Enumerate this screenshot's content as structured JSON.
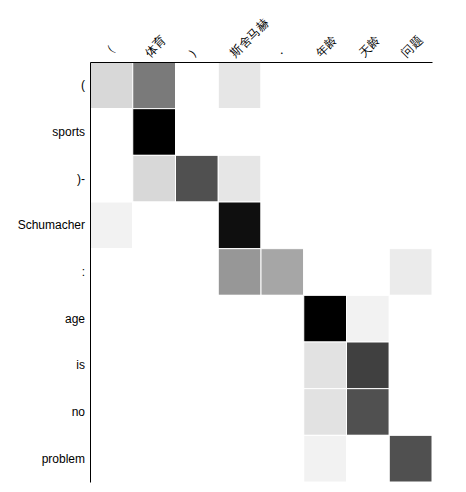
{
  "chart_data": {
    "type": "heatmap",
    "x": [
      "（",
      "体育",
      "）",
      "斯舍马赫",
      "．",
      "年龄",
      "天龄",
      "问题"
    ],
    "y": [
      "(",
      "sports",
      ")-",
      "Schumacher",
      ":",
      "age",
      "is",
      "no",
      "problem"
    ],
    "values": [
      [
        0.25,
        0.6,
        0.0,
        0.18,
        0.0,
        0.0,
        0.0,
        0.0
      ],
      [
        0.0,
        1.0,
        0.0,
        0.0,
        0.0,
        0.0,
        0.0,
        0.0
      ],
      [
        0.0,
        0.25,
        0.75,
        0.18,
        0.0,
        0.0,
        0.0,
        0.0
      ],
      [
        0.1,
        0.0,
        0.0,
        0.95,
        0.0,
        0.0,
        0.0,
        0.0
      ],
      [
        0.0,
        0.0,
        0.0,
        0.5,
        0.45,
        0.0,
        0.0,
        0.15
      ],
      [
        0.0,
        0.0,
        0.0,
        0.0,
        0.0,
        1.0,
        0.1,
        0.0
      ],
      [
        0.0,
        0.0,
        0.0,
        0.0,
        0.0,
        0.2,
        0.8,
        0.0
      ],
      [
        0.0,
        0.0,
        0.0,
        0.0,
        0.0,
        0.2,
        0.75,
        0.0
      ],
      [
        0.0,
        0.0,
        0.0,
        0.0,
        0.0,
        0.1,
        0.0,
        0.75
      ]
    ],
    "zlim": [
      0,
      1
    ],
    "grid": true
  }
}
